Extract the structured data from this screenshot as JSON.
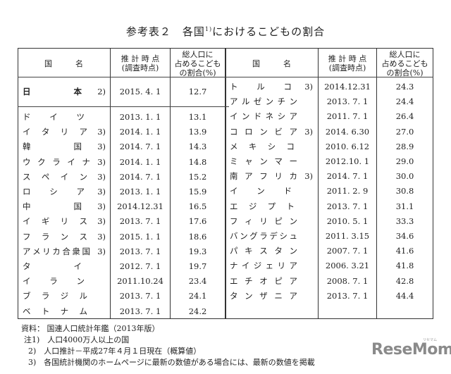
{
  "title": {
    "main": "参考表２　各国",
    "sup": "1)",
    "rest": "におけるこどもの割合"
  },
  "headers": {
    "country": "国　　　名",
    "date": "推 計 時 点\n(調査時点)",
    "ratio": "総人口に\n占めるこども\nの割合(%)"
  },
  "left_rows": [
    {
      "name": "日本",
      "note": "2)",
      "date": "2015. 4. 1",
      "ratio": "12.7",
      "bold": true
    },
    {
      "name": "ドイツ",
      "note": "",
      "date": "2013. 1. 1",
      "ratio": "13.1"
    },
    {
      "name": "イタリア",
      "note": "3)",
      "date": "2014. 1. 1",
      "ratio": "13.9"
    },
    {
      "name": "韓国",
      "note": "3)",
      "date": "2014. 7. 1",
      "ratio": "14.3"
    },
    {
      "name": "ウクライナ",
      "note": "3)",
      "date": "2014. 1. 1",
      "ratio": "14.8"
    },
    {
      "name": "スペイン",
      "note": "3)",
      "date": "2014. 7. 1",
      "ratio": "15.2"
    },
    {
      "name": "ロシア",
      "note": "3)",
      "date": "2013. 1. 1",
      "ratio": "15.9"
    },
    {
      "name": "中国",
      "note": "3)",
      "date": "2014.12.31",
      "ratio": "16.5"
    },
    {
      "name": "イギリス",
      "note": "3)",
      "date": "2013. 7. 1",
      "ratio": "17.6"
    },
    {
      "name": "フランス",
      "note": "3)",
      "date": "2015. 1. 1",
      "ratio": "18.6"
    },
    {
      "name": "アメリカ合衆国",
      "note": "3)",
      "date": "2013. 7. 1",
      "ratio": "19.3"
    },
    {
      "name": "タイ",
      "note": "",
      "date": "2012. 7. 1",
      "ratio": "19.7"
    },
    {
      "name": "イラン",
      "note": "",
      "date": "2011.10.24",
      "ratio": "23.4"
    },
    {
      "name": "ブラジル",
      "note": "",
      "date": "2013. 7. 1",
      "ratio": "24.1"
    },
    {
      "name": "ベトナム",
      "note": "",
      "date": "2013. 7. 1",
      "ratio": "24.2"
    }
  ],
  "right_rows": [
    {
      "name": "トルコ",
      "note": "3)",
      "date": "2014.12.31",
      "ratio": "24.3"
    },
    {
      "name": "アルゼンチン",
      "note": "",
      "date": "2013. 7. 1",
      "ratio": "24.4"
    },
    {
      "name": "インドネシア",
      "note": "",
      "date": "2011. 7. 1",
      "ratio": "26.4"
    },
    {
      "name": "コロンビア",
      "note": "3)",
      "date": "2014. 6.30",
      "ratio": "27.0"
    },
    {
      "name": "メキシコ",
      "note": "",
      "date": "2010. 6.12",
      "ratio": "28.9"
    },
    {
      "name": "ミャンマー",
      "note": "",
      "date": "2012.10. 1",
      "ratio": "29.0"
    },
    {
      "name": "南アフリカ",
      "note": "3)",
      "date": "2014. 7. 1",
      "ratio": "30.0"
    },
    {
      "name": "インド",
      "note": "",
      "date": "2011. 2. 9",
      "ratio": "30.8"
    },
    {
      "name": "エジプト",
      "note": "",
      "date": "2013. 7. 1",
      "ratio": "31.1"
    },
    {
      "name": "フィリピン",
      "note": "",
      "date": "2010. 5. 1",
      "ratio": "33.3"
    },
    {
      "name": "バングラデシュ",
      "note": "",
      "date": "2011. 3.15",
      "ratio": "34.6"
    },
    {
      "name": "パキスタン",
      "note": "",
      "date": "2007. 7. 1",
      "ratio": "41.6"
    },
    {
      "name": "ナイジェリア",
      "note": "",
      "date": "2006. 3.21",
      "ratio": "41.8"
    },
    {
      "name": "エチオピア",
      "note": "",
      "date": "2008. 7. 1",
      "ratio": "42.8"
    },
    {
      "name": "タンザニア",
      "note": "",
      "date": "2013. 7. 1",
      "ratio": "44.4"
    }
  ],
  "notes": {
    "source": "資料：  国連人口統計年鑑（2013年版）",
    "n1": "注1)　人口4000万人以上の国",
    "n2": "2)　人口推計－平成27年４月１日現在（概算値）",
    "n3": "3)　各国統計機関のホームページに最新の数値がある場合には、最新の数値を掲載"
  },
  "logo": {
    "text": "ReseMom",
    "sub": "リセマム"
  }
}
